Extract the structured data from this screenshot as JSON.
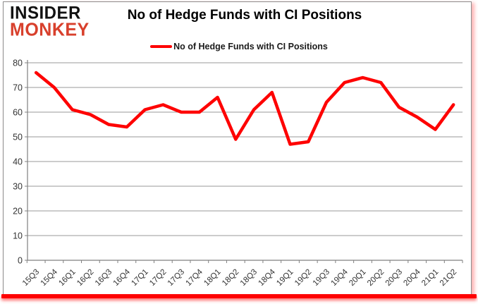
{
  "logo": {
    "line1": "INSIDER",
    "line2": "MONKEY"
  },
  "title": "No of Hedge Funds with CI Positions",
  "legend": {
    "label": "No of Hedge Funds with CI Positions"
  },
  "colors": {
    "series_line": "#fe0000",
    "logo_black": "#111111",
    "logo_red": "#d8402c",
    "gridline": "#999999",
    "axis_line": "#808080",
    "tick_text": "#333333",
    "bottom_bar": "#fe0000"
  },
  "chart_data": {
    "type": "line",
    "title": "No of Hedge Funds with CI Positions",
    "categories": [
      "15Q3",
      "15Q4",
      "16Q1",
      "16Q2",
      "16Q3",
      "16Q4",
      "17Q1",
      "17Q2",
      "17Q3",
      "17Q4",
      "18Q1",
      "18Q2",
      "18Q3",
      "18Q4",
      "19Q1",
      "19Q2",
      "19Q3",
      "19Q4",
      "20Q1",
      "20Q2",
      "20Q3",
      "20Q4",
      "21Q1",
      "21Q2"
    ],
    "series": [
      {
        "name": "No of Hedge Funds with CI Positions",
        "values": [
          76,
          70,
          61,
          59,
          55,
          54,
          61,
          63,
          60,
          60,
          66,
          49,
          61,
          68,
          47,
          48,
          64,
          72,
          74,
          72,
          62,
          58,
          53,
          63
        ]
      }
    ],
    "xlabel": "",
    "ylabel": "",
    "ylim": [
      0,
      80
    ],
    "y_ticks": [
      0,
      10,
      20,
      30,
      40,
      50,
      60,
      70,
      80
    ],
    "grid": true,
    "legend_position": "top-center"
  }
}
